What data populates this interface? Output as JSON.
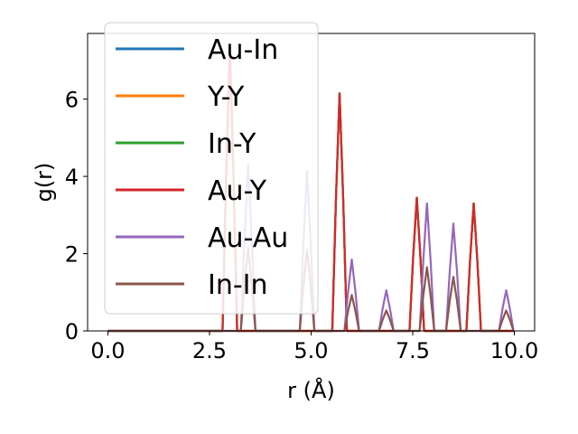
{
  "chart_data": {
    "type": "line",
    "title": "",
    "xlabel": "r (Å)",
    "ylabel": "g(r)",
    "xlim": [
      -0.5,
      10.5
    ],
    "ylim": [
      0,
      7.7
    ],
    "xticks": [
      0.0,
      2.5,
      5.0,
      7.5,
      10.0
    ],
    "xtick_labels": [
      "0.0",
      "2.5",
      "5.0",
      "7.5",
      "10.0"
    ],
    "yticks": [
      0,
      2,
      4,
      6
    ],
    "ytick_labels": [
      "0",
      "2",
      "4",
      "6"
    ],
    "grid": false,
    "legend_position": "top-left",
    "peak_width": 0.18,
    "series": [
      {
        "name": "Au-In",
        "color": "#1f77b4",
        "peaks": [
          [
            3.0,
            7.35
          ],
          [
            5.7,
            6.15
          ],
          [
            7.6,
            3.45
          ],
          [
            9.0,
            3.3
          ]
        ]
      },
      {
        "name": "Y-Y",
        "color": "#ff7f0e",
        "peaks": [
          [
            3.0,
            7.35
          ],
          [
            5.7,
            6.15
          ],
          [
            7.6,
            3.45
          ],
          [
            9.0,
            3.3
          ]
        ]
      },
      {
        "name": "In-Y",
        "color": "#2ca02c",
        "peaks": [
          [
            3.0,
            7.35
          ],
          [
            5.7,
            6.15
          ],
          [
            7.6,
            3.45
          ],
          [
            9.0,
            3.3
          ]
        ]
      },
      {
        "name": "Au-Y",
        "color": "#d62728",
        "peaks": [
          [
            3.0,
            7.35
          ],
          [
            5.7,
            6.15
          ],
          [
            7.6,
            3.45
          ],
          [
            9.0,
            3.3
          ]
        ]
      },
      {
        "name": "Au-Au",
        "color": "#9467bd",
        "peaks": [
          [
            3.45,
            4.3
          ],
          [
            4.9,
            4.15
          ],
          [
            6.0,
            1.85
          ],
          [
            6.85,
            1.05
          ],
          [
            7.85,
            3.3
          ],
          [
            8.5,
            2.78
          ],
          [
            9.8,
            1.05
          ]
        ]
      },
      {
        "name": "In-In",
        "color": "#8c564b",
        "peaks": [
          [
            3.45,
            2.15
          ],
          [
            4.9,
            2.1
          ],
          [
            6.0,
            0.93
          ],
          [
            6.85,
            0.53
          ],
          [
            7.85,
            1.65
          ],
          [
            8.5,
            1.4
          ],
          [
            9.8,
            0.53
          ]
        ]
      }
    ]
  }
}
